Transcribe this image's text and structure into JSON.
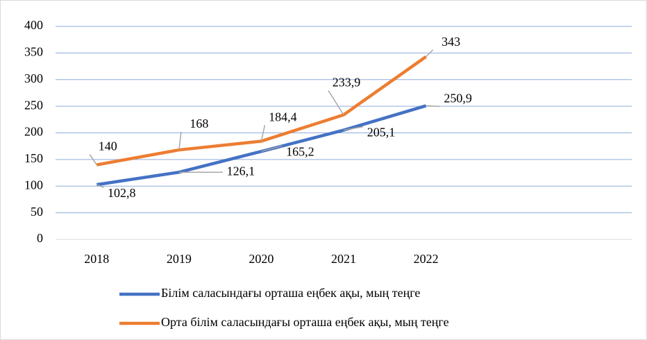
{
  "chart_data": {
    "type": "line",
    "categories": [
      "2018",
      "2019",
      "2020",
      "2021",
      "2022",
      null,
      null
    ],
    "series": [
      {
        "name": "Білім саласындағы орташа еңбек ақы, мың теңге",
        "color": "#4472c4",
        "values": [
          102.8,
          126.1,
          165.2,
          205.1,
          250.9,
          null,
          null
        ],
        "value_labels": [
          "102,8",
          "126,1",
          "165,2",
          "205,1",
          "250,9",
          null,
          null
        ]
      },
      {
        "name": "Орта білім саласындағы орташа еңбек ақы, мың теңге",
        "color": "#ed7d31",
        "values": [
          140,
          168,
          184.4,
          233.9,
          343,
          null,
          null
        ],
        "value_labels": [
          "140",
          "168",
          "184,4",
          "233,9",
          "343",
          null,
          null
        ]
      }
    ],
    "ylim": [
      0,
      400
    ],
    "yticks": [
      0,
      50,
      100,
      150,
      200,
      250,
      300,
      350,
      400
    ],
    "grid": true,
    "legend": "bottom"
  }
}
